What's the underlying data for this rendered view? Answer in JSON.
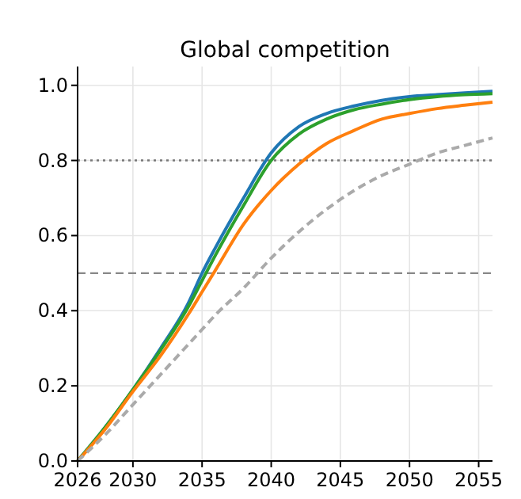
{
  "chart_data": {
    "type": "line",
    "title": "Global competition",
    "x": [
      2026,
      2028,
      2030,
      2032,
      2034,
      2035,
      2036,
      2038,
      2040,
      2042,
      2044,
      2046,
      2048,
      2050,
      2052,
      2054,
      2056
    ],
    "series": [
      {
        "color": "#1f77b4",
        "values": [
          0,
          0.09,
          0.19,
          0.3,
          0.42,
          0.5,
          0.57,
          0.7,
          0.82,
          0.89,
          0.925,
          0.945,
          0.96,
          0.97,
          0.975,
          0.98,
          0.984
        ]
      },
      {
        "color": "#2ca02c",
        "values": [
          0,
          0.09,
          0.19,
          0.295,
          0.41,
          0.48,
          0.55,
          0.68,
          0.8,
          0.87,
          0.91,
          0.935,
          0.95,
          0.962,
          0.97,
          0.975,
          0.978
        ]
      },
      {
        "color": "#ff7f0e",
        "values": [
          0,
          0.085,
          0.185,
          0.28,
          0.39,
          0.45,
          0.51,
          0.63,
          0.72,
          0.79,
          0.845,
          0.88,
          0.91,
          0.925,
          0.938,
          0.947,
          0.955
        ]
      },
      {
        "color": "#aaaaaa",
        "line_style": "dashed",
        "values": [
          0,
          0.07,
          0.15,
          0.23,
          0.31,
          0.35,
          0.39,
          0.46,
          0.54,
          0.61,
          0.67,
          0.72,
          0.76,
          0.79,
          0.82,
          0.84,
          0.86
        ]
      }
    ],
    "xlim": [
      2026,
      2056
    ],
    "xticks": [
      2026,
      2030,
      2035,
      2040,
      2045,
      2050,
      2055
    ],
    "ylim": [
      0,
      1.05
    ],
    "yticks": [
      {
        "value": 0,
        "label": "0.0"
      },
      0.2,
      0.4,
      0.6,
      0.8,
      {
        "value": 1,
        "label": "1.0"
      }
    ],
    "ref_lines": [
      {
        "axis": "y",
        "value": 0.8,
        "color": "#777777",
        "line_style": "dotted"
      },
      {
        "axis": "y",
        "value": 0.5,
        "color": "#888888",
        "line_style": "dashed"
      }
    ],
    "grid": true,
    "line_style": "solid",
    "marker": "none"
  }
}
